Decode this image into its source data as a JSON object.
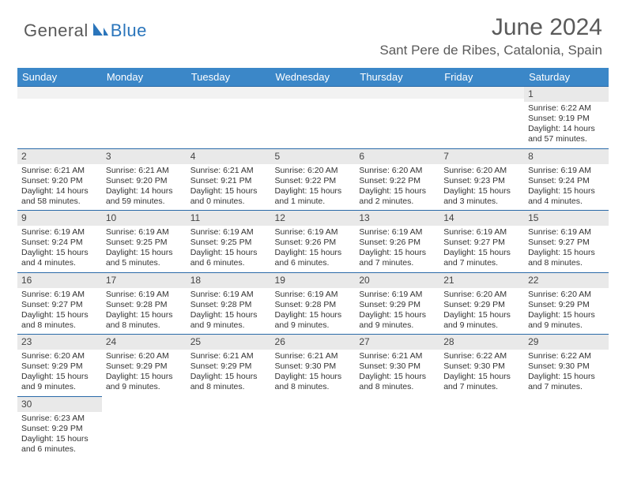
{
  "brand": {
    "part1": "General",
    "part2": "Blue",
    "color1": "#5a5a5a",
    "color2": "#2a75bb"
  },
  "title": "June 2024",
  "location": "Sant Pere de Ribes, Catalonia, Spain",
  "header_bg": "#3b87c8",
  "header_fg": "#ffffff",
  "daynum_bg": "#e9e9e9",
  "border_color": "#2a6aa8",
  "weekdays": [
    "Sunday",
    "Monday",
    "Tuesday",
    "Wednesday",
    "Thursday",
    "Friday",
    "Saturday"
  ],
  "weeks": [
    [
      null,
      null,
      null,
      null,
      null,
      null,
      {
        "n": "1",
        "sr": "6:22 AM",
        "ss": "9:19 PM",
        "dl": "14 hours and 57 minutes."
      }
    ],
    [
      {
        "n": "2",
        "sr": "6:21 AM",
        "ss": "9:20 PM",
        "dl": "14 hours and 58 minutes."
      },
      {
        "n": "3",
        "sr": "6:21 AM",
        "ss": "9:20 PM",
        "dl": "14 hours and 59 minutes."
      },
      {
        "n": "4",
        "sr": "6:21 AM",
        "ss": "9:21 PM",
        "dl": "15 hours and 0 minutes."
      },
      {
        "n": "5",
        "sr": "6:20 AM",
        "ss": "9:22 PM",
        "dl": "15 hours and 1 minute."
      },
      {
        "n": "6",
        "sr": "6:20 AM",
        "ss": "9:22 PM",
        "dl": "15 hours and 2 minutes."
      },
      {
        "n": "7",
        "sr": "6:20 AM",
        "ss": "9:23 PM",
        "dl": "15 hours and 3 minutes."
      },
      {
        "n": "8",
        "sr": "6:19 AM",
        "ss": "9:24 PM",
        "dl": "15 hours and 4 minutes."
      }
    ],
    [
      {
        "n": "9",
        "sr": "6:19 AM",
        "ss": "9:24 PM",
        "dl": "15 hours and 4 minutes."
      },
      {
        "n": "10",
        "sr": "6:19 AM",
        "ss": "9:25 PM",
        "dl": "15 hours and 5 minutes."
      },
      {
        "n": "11",
        "sr": "6:19 AM",
        "ss": "9:25 PM",
        "dl": "15 hours and 6 minutes."
      },
      {
        "n": "12",
        "sr": "6:19 AM",
        "ss": "9:26 PM",
        "dl": "15 hours and 6 minutes."
      },
      {
        "n": "13",
        "sr": "6:19 AM",
        "ss": "9:26 PM",
        "dl": "15 hours and 7 minutes."
      },
      {
        "n": "14",
        "sr": "6:19 AM",
        "ss": "9:27 PM",
        "dl": "15 hours and 7 minutes."
      },
      {
        "n": "15",
        "sr": "6:19 AM",
        "ss": "9:27 PM",
        "dl": "15 hours and 8 minutes."
      }
    ],
    [
      {
        "n": "16",
        "sr": "6:19 AM",
        "ss": "9:27 PM",
        "dl": "15 hours and 8 minutes."
      },
      {
        "n": "17",
        "sr": "6:19 AM",
        "ss": "9:28 PM",
        "dl": "15 hours and 8 minutes."
      },
      {
        "n": "18",
        "sr": "6:19 AM",
        "ss": "9:28 PM",
        "dl": "15 hours and 9 minutes."
      },
      {
        "n": "19",
        "sr": "6:19 AM",
        "ss": "9:28 PM",
        "dl": "15 hours and 9 minutes."
      },
      {
        "n": "20",
        "sr": "6:19 AM",
        "ss": "9:29 PM",
        "dl": "15 hours and 9 minutes."
      },
      {
        "n": "21",
        "sr": "6:20 AM",
        "ss": "9:29 PM",
        "dl": "15 hours and 9 minutes."
      },
      {
        "n": "22",
        "sr": "6:20 AM",
        "ss": "9:29 PM",
        "dl": "15 hours and 9 minutes."
      }
    ],
    [
      {
        "n": "23",
        "sr": "6:20 AM",
        "ss": "9:29 PM",
        "dl": "15 hours and 9 minutes."
      },
      {
        "n": "24",
        "sr": "6:20 AM",
        "ss": "9:29 PM",
        "dl": "15 hours and 9 minutes."
      },
      {
        "n": "25",
        "sr": "6:21 AM",
        "ss": "9:29 PM",
        "dl": "15 hours and 8 minutes."
      },
      {
        "n": "26",
        "sr": "6:21 AM",
        "ss": "9:30 PM",
        "dl": "15 hours and 8 minutes."
      },
      {
        "n": "27",
        "sr": "6:21 AM",
        "ss": "9:30 PM",
        "dl": "15 hours and 8 minutes."
      },
      {
        "n": "28",
        "sr": "6:22 AM",
        "ss": "9:30 PM",
        "dl": "15 hours and 7 minutes."
      },
      {
        "n": "29",
        "sr": "6:22 AM",
        "ss": "9:30 PM",
        "dl": "15 hours and 7 minutes."
      }
    ],
    [
      {
        "n": "30",
        "sr": "6:23 AM",
        "ss": "9:29 PM",
        "dl": "15 hours and 6 minutes."
      },
      null,
      null,
      null,
      null,
      null,
      null
    ]
  ],
  "labels": {
    "sunrise": "Sunrise: ",
    "sunset": "Sunset: ",
    "daylight": "Daylight: "
  }
}
